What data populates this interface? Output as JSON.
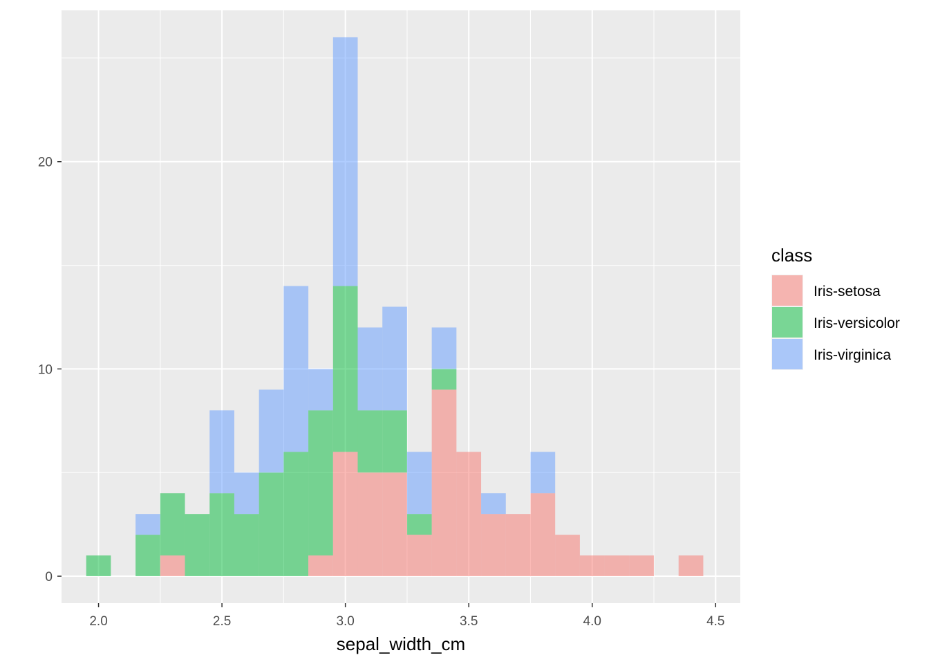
{
  "chart_data": {
    "type": "bar",
    "subtype": "overlapping-histogram",
    "title": "",
    "xlabel": "sepal_width_cm",
    "ylabel": "",
    "xlim": [
      1.85,
      4.6
    ],
    "ylim": [
      -1.3,
      27.3
    ],
    "bin_width": 0.1,
    "x_ticks": [
      2.0,
      2.5,
      3.0,
      3.5,
      4.0,
      4.5
    ],
    "x_tick_labels": [
      "2.0",
      "2.5",
      "3.0",
      "3.5",
      "4.0",
      "4.5"
    ],
    "y_ticks": [
      0,
      10,
      20
    ],
    "y_tick_labels": [
      "0",
      "10",
      "20"
    ],
    "grid": true,
    "panel_background": "#ebebeb",
    "gridline_color": "#ffffff",
    "legend": {
      "title": "class",
      "position": "right",
      "entries": [
        "Iris-setosa",
        "Iris-versicolor",
        "Iris-virginica"
      ]
    },
    "bin_centers": [
      2.0,
      2.1,
      2.2,
      2.3,
      2.4,
      2.5,
      2.6,
      2.7,
      2.8,
      2.9,
      3.0,
      3.1,
      3.2,
      3.3,
      3.4,
      3.5,
      3.6,
      3.7,
      3.8,
      3.9,
      4.0,
      4.1,
      4.2,
      4.3,
      4.4
    ],
    "series": [
      {
        "name": "Iris-setosa",
        "color": "#F8766D",
        "values": [
          0,
          0,
          0,
          1,
          0,
          0,
          0,
          0,
          0,
          1,
          6,
          5,
          5,
          2,
          9,
          6,
          3,
          3,
          4,
          2,
          1,
          1,
          1,
          0,
          1
        ]
      },
      {
        "name": "Iris-versicolor",
        "color": "#00BA38",
        "values": [
          1,
          0,
          2,
          3,
          3,
          4,
          3,
          5,
          6,
          7,
          8,
          3,
          3,
          1,
          1,
          0,
          0,
          0,
          0,
          0,
          0,
          0,
          0,
          0,
          0
        ]
      },
      {
        "name": "Iris-virginica",
        "color": "#619CFF",
        "values": [
          0,
          0,
          1,
          0,
          0,
          4,
          2,
          4,
          8,
          2,
          12,
          4,
          5,
          3,
          2,
          0,
          1,
          0,
          2,
          0,
          0,
          0,
          0,
          0,
          0
        ]
      }
    ],
    "fill_opacity": 0.5
  }
}
